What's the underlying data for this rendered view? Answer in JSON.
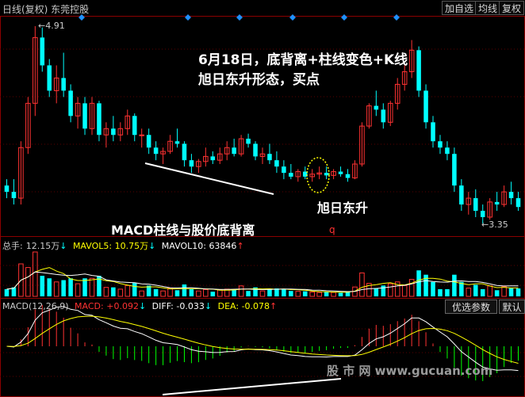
{
  "window": {
    "title": "日线(复权) 东莞控股",
    "buttons": [
      "加自选",
      "均线",
      "复权"
    ]
  },
  "price_panel": {
    "high_label": "4.91",
    "low_label": "3.35",
    "annotation_title": "6月18日，底背离+柱线变色+K线",
    "annotation_sub": "旭日东升形态，买点",
    "pattern_label": "旭日东升",
    "divergence_label": "MACD柱线与股价底背离",
    "marker_q": "q",
    "colors": {
      "up": "#ff3232",
      "down": "#00ffff"
    }
  },
  "volume_panel": {
    "label": "总手:",
    "total": "12.15万",
    "total_arrow": "↓",
    "mavol5_label": "MAVOL5:",
    "mavol5": "10.75万",
    "mavol5_arrow": "↓",
    "mavol10_label": "MAVOL10:",
    "mavol10": "63846",
    "mavol10_arrow": "↑"
  },
  "macd_panel": {
    "name": "MACD(12,26,9)",
    "macd_label": "MACD:",
    "macd": "+0.092",
    "macd_arrow": "↓",
    "diff_label": "DIFF:",
    "diff": "-0.033",
    "diff_arrow": "↓",
    "dea_label": "DEA:",
    "dea": "-0.078",
    "dea_arrow": "↑",
    "btn_params": "优选参数",
    "btn_default": "默认"
  },
  "watermark": "股 市 网  www.gucuan.com",
  "chart_data": {
    "type": "candlestick",
    "price_range": [
      3.35,
      4.91
    ],
    "candles": [
      [
        3.65,
        3.7,
        3.55,
        3.6
      ],
      [
        3.6,
        3.7,
        3.5,
        3.55
      ],
      [
        3.55,
        4.0,
        3.5,
        3.95
      ],
      [
        3.95,
        4.35,
        3.9,
        4.3
      ],
      [
        4.3,
        4.91,
        4.2,
        4.82
      ],
      [
        4.82,
        4.9,
        4.55,
        4.6
      ],
      [
        4.6,
        4.65,
        4.35,
        4.4
      ],
      [
        4.4,
        4.6,
        4.3,
        4.5
      ],
      [
        4.5,
        4.7,
        4.35,
        4.4
      ],
      [
        4.4,
        4.45,
        4.15,
        4.2
      ],
      [
        4.2,
        4.35,
        4.1,
        4.3
      ],
      [
        4.3,
        4.35,
        4.05,
        4.1
      ],
      [
        4.1,
        4.35,
        4.05,
        4.3
      ],
      [
        4.3,
        4.32,
        4.0,
        4.05
      ],
      [
        4.05,
        4.15,
        3.95,
        4.1
      ],
      [
        4.1,
        4.2,
        4.0,
        4.05
      ],
      [
        4.05,
        4.15,
        4.0,
        4.1
      ],
      [
        4.1,
        4.25,
        4.05,
        4.2
      ],
      [
        4.2,
        4.22,
        4.0,
        4.05
      ],
      [
        4.05,
        4.1,
        3.95,
        4.05
      ],
      [
        4.05,
        4.1,
        3.9,
        3.95
      ],
      [
        3.95,
        4.0,
        3.85,
        3.9
      ],
      [
        3.9,
        3.95,
        3.82,
        3.92
      ],
      [
        3.92,
        4.05,
        3.9,
        4.0
      ],
      [
        4.0,
        4.1,
        3.95,
        3.98
      ],
      [
        3.98,
        4.0,
        3.8,
        3.85
      ],
      [
        3.85,
        3.9,
        3.75,
        3.8
      ],
      [
        3.8,
        3.86,
        3.75,
        3.84
      ],
      [
        3.84,
        3.95,
        3.8,
        3.88
      ],
      [
        3.88,
        3.92,
        3.82,
        3.85
      ],
      [
        3.85,
        3.95,
        3.82,
        3.9
      ],
      [
        3.9,
        4.0,
        3.85,
        3.95
      ],
      [
        3.95,
        4.02,
        3.88,
        3.9
      ],
      [
        3.9,
        4.05,
        3.88,
        4.02
      ],
      [
        4.02,
        4.06,
        3.95,
        3.98
      ],
      [
        3.98,
        4.0,
        3.85,
        3.88
      ],
      [
        3.88,
        3.95,
        3.82,
        3.9
      ],
      [
        3.9,
        3.98,
        3.82,
        3.85
      ],
      [
        3.85,
        3.92,
        3.75,
        3.8
      ],
      [
        3.8,
        3.85,
        3.7,
        3.75
      ],
      [
        3.75,
        3.82,
        3.7,
        3.72
      ],
      [
        3.72,
        3.78,
        3.68,
        3.76
      ],
      [
        3.76,
        3.8,
        3.7,
        3.72
      ],
      [
        3.72,
        3.78,
        3.68,
        3.74
      ],
      [
        3.74,
        3.8,
        3.7,
        3.75
      ],
      [
        3.75,
        3.8,
        3.7,
        3.73
      ],
      [
        3.73,
        3.78,
        3.7,
        3.76
      ],
      [
        3.76,
        3.8,
        3.72,
        3.74
      ],
      [
        3.74,
        3.78,
        3.68,
        3.71
      ],
      [
        3.71,
        3.85,
        3.7,
        3.82
      ],
      [
        3.82,
        4.15,
        3.8,
        4.12
      ],
      [
        4.12,
        4.3,
        4.1,
        4.28
      ],
      [
        4.28,
        4.4,
        4.2,
        4.25
      ],
      [
        4.25,
        4.3,
        4.1,
        4.15
      ],
      [
        4.15,
        4.32,
        4.12,
        4.3
      ],
      [
        4.3,
        4.5,
        4.25,
        4.45
      ],
      [
        4.45,
        4.6,
        4.4,
        4.55
      ],
      [
        4.55,
        4.8,
        4.5,
        4.72
      ],
      [
        4.72,
        4.75,
        4.35,
        4.4
      ],
      [
        4.4,
        4.45,
        4.1,
        4.15
      ],
      [
        4.15,
        4.2,
        3.95,
        4.0
      ],
      [
        4.0,
        4.05,
        3.9,
        3.95
      ],
      [
        3.95,
        4.0,
        3.85,
        3.9
      ],
      [
        3.9,
        3.95,
        3.6,
        3.65
      ],
      [
        3.65,
        3.7,
        3.45,
        3.5
      ],
      [
        3.5,
        3.6,
        3.42,
        3.55
      ],
      [
        3.55,
        3.62,
        3.4,
        3.45
      ],
      [
        3.45,
        3.5,
        3.35,
        3.4
      ],
      [
        3.4,
        3.55,
        3.38,
        3.52
      ],
      [
        3.52,
        3.6,
        3.45,
        3.5
      ],
      [
        3.5,
        3.65,
        3.48,
        3.6
      ],
      [
        3.6,
        3.68,
        3.5,
        3.55
      ],
      [
        3.55,
        3.6,
        3.45,
        3.48
      ]
    ]
  }
}
